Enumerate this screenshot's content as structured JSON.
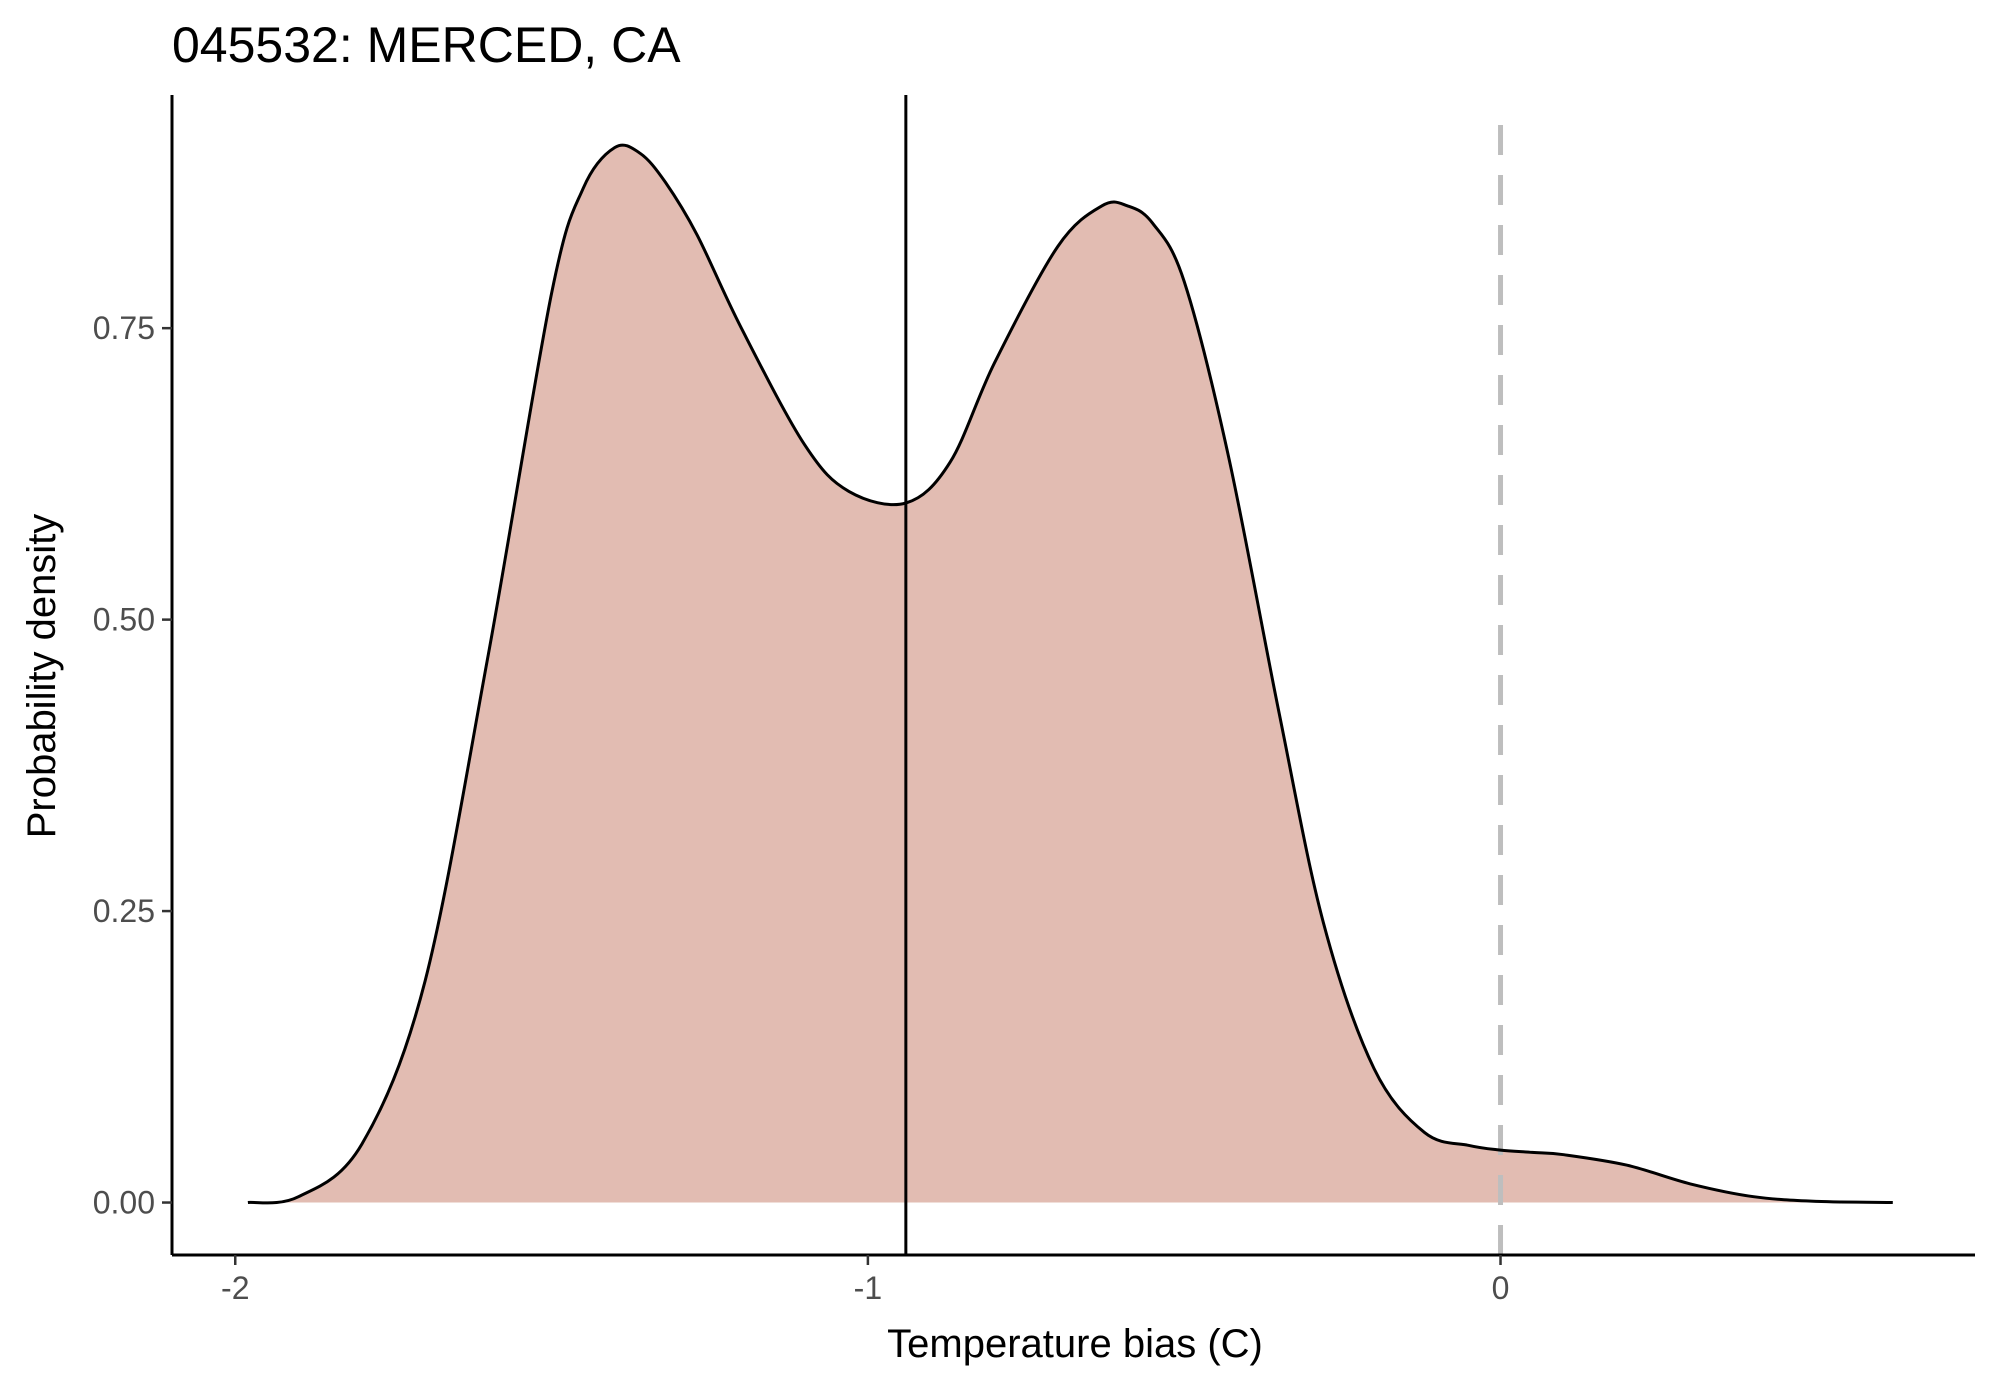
{
  "chart_data": {
    "type": "area",
    "title": "045532: MERCED, CA",
    "xlabel": "Temperature bias (C)",
    "ylabel": "Probability density",
    "xlim": [
      -2.1,
      0.75
    ],
    "ylim": [
      -0.045,
      0.95
    ],
    "x_ticks": [
      -2,
      -1,
      0
    ],
    "x_tick_labels": [
      "-2",
      "-1",
      "0"
    ],
    "y_ticks": [
      0,
      0.25,
      0.5,
      0.75
    ],
    "y_tick_labels": [
      "0.00",
      "0.25",
      "0.50",
      "0.75"
    ],
    "grid": false,
    "legend": "none",
    "fill_color": "#e2bcb2",
    "line_color": "#000000",
    "reference_lines": [
      {
        "x": -0.94,
        "style": "solid",
        "color": "#000000"
      },
      {
        "x": 0,
        "style": "dashed",
        "color": "#bebebe"
      }
    ],
    "series": [
      {
        "x": [
          -1.98,
          -1.9,
          -1.8,
          -1.7,
          -1.6,
          -1.5,
          -1.45,
          -1.4,
          -1.36,
          -1.32,
          -1.27,
          -1.2,
          -1.1,
          -1.03,
          -0.94,
          -0.87,
          -0.8,
          -0.7,
          -0.63,
          -0.59,
          -0.55,
          -0.5,
          -0.43,
          -0.35,
          -0.28,
          -0.2,
          -0.12,
          -0.05,
          0.0,
          0.05,
          0.1,
          0.2,
          0.3,
          0.4,
          0.5,
          0.62
        ],
        "y": [
          0.0,
          0.005,
          0.05,
          0.19,
          0.47,
          0.78,
          0.87,
          0.905,
          0.9,
          0.875,
          0.83,
          0.75,
          0.65,
          0.61,
          0.6,
          0.635,
          0.72,
          0.82,
          0.855,
          0.855,
          0.84,
          0.79,
          0.64,
          0.42,
          0.24,
          0.115,
          0.06,
          0.049,
          0.045,
          0.043,
          0.041,
          0.032,
          0.016,
          0.005,
          0.001,
          0.0
        ]
      }
    ]
  }
}
